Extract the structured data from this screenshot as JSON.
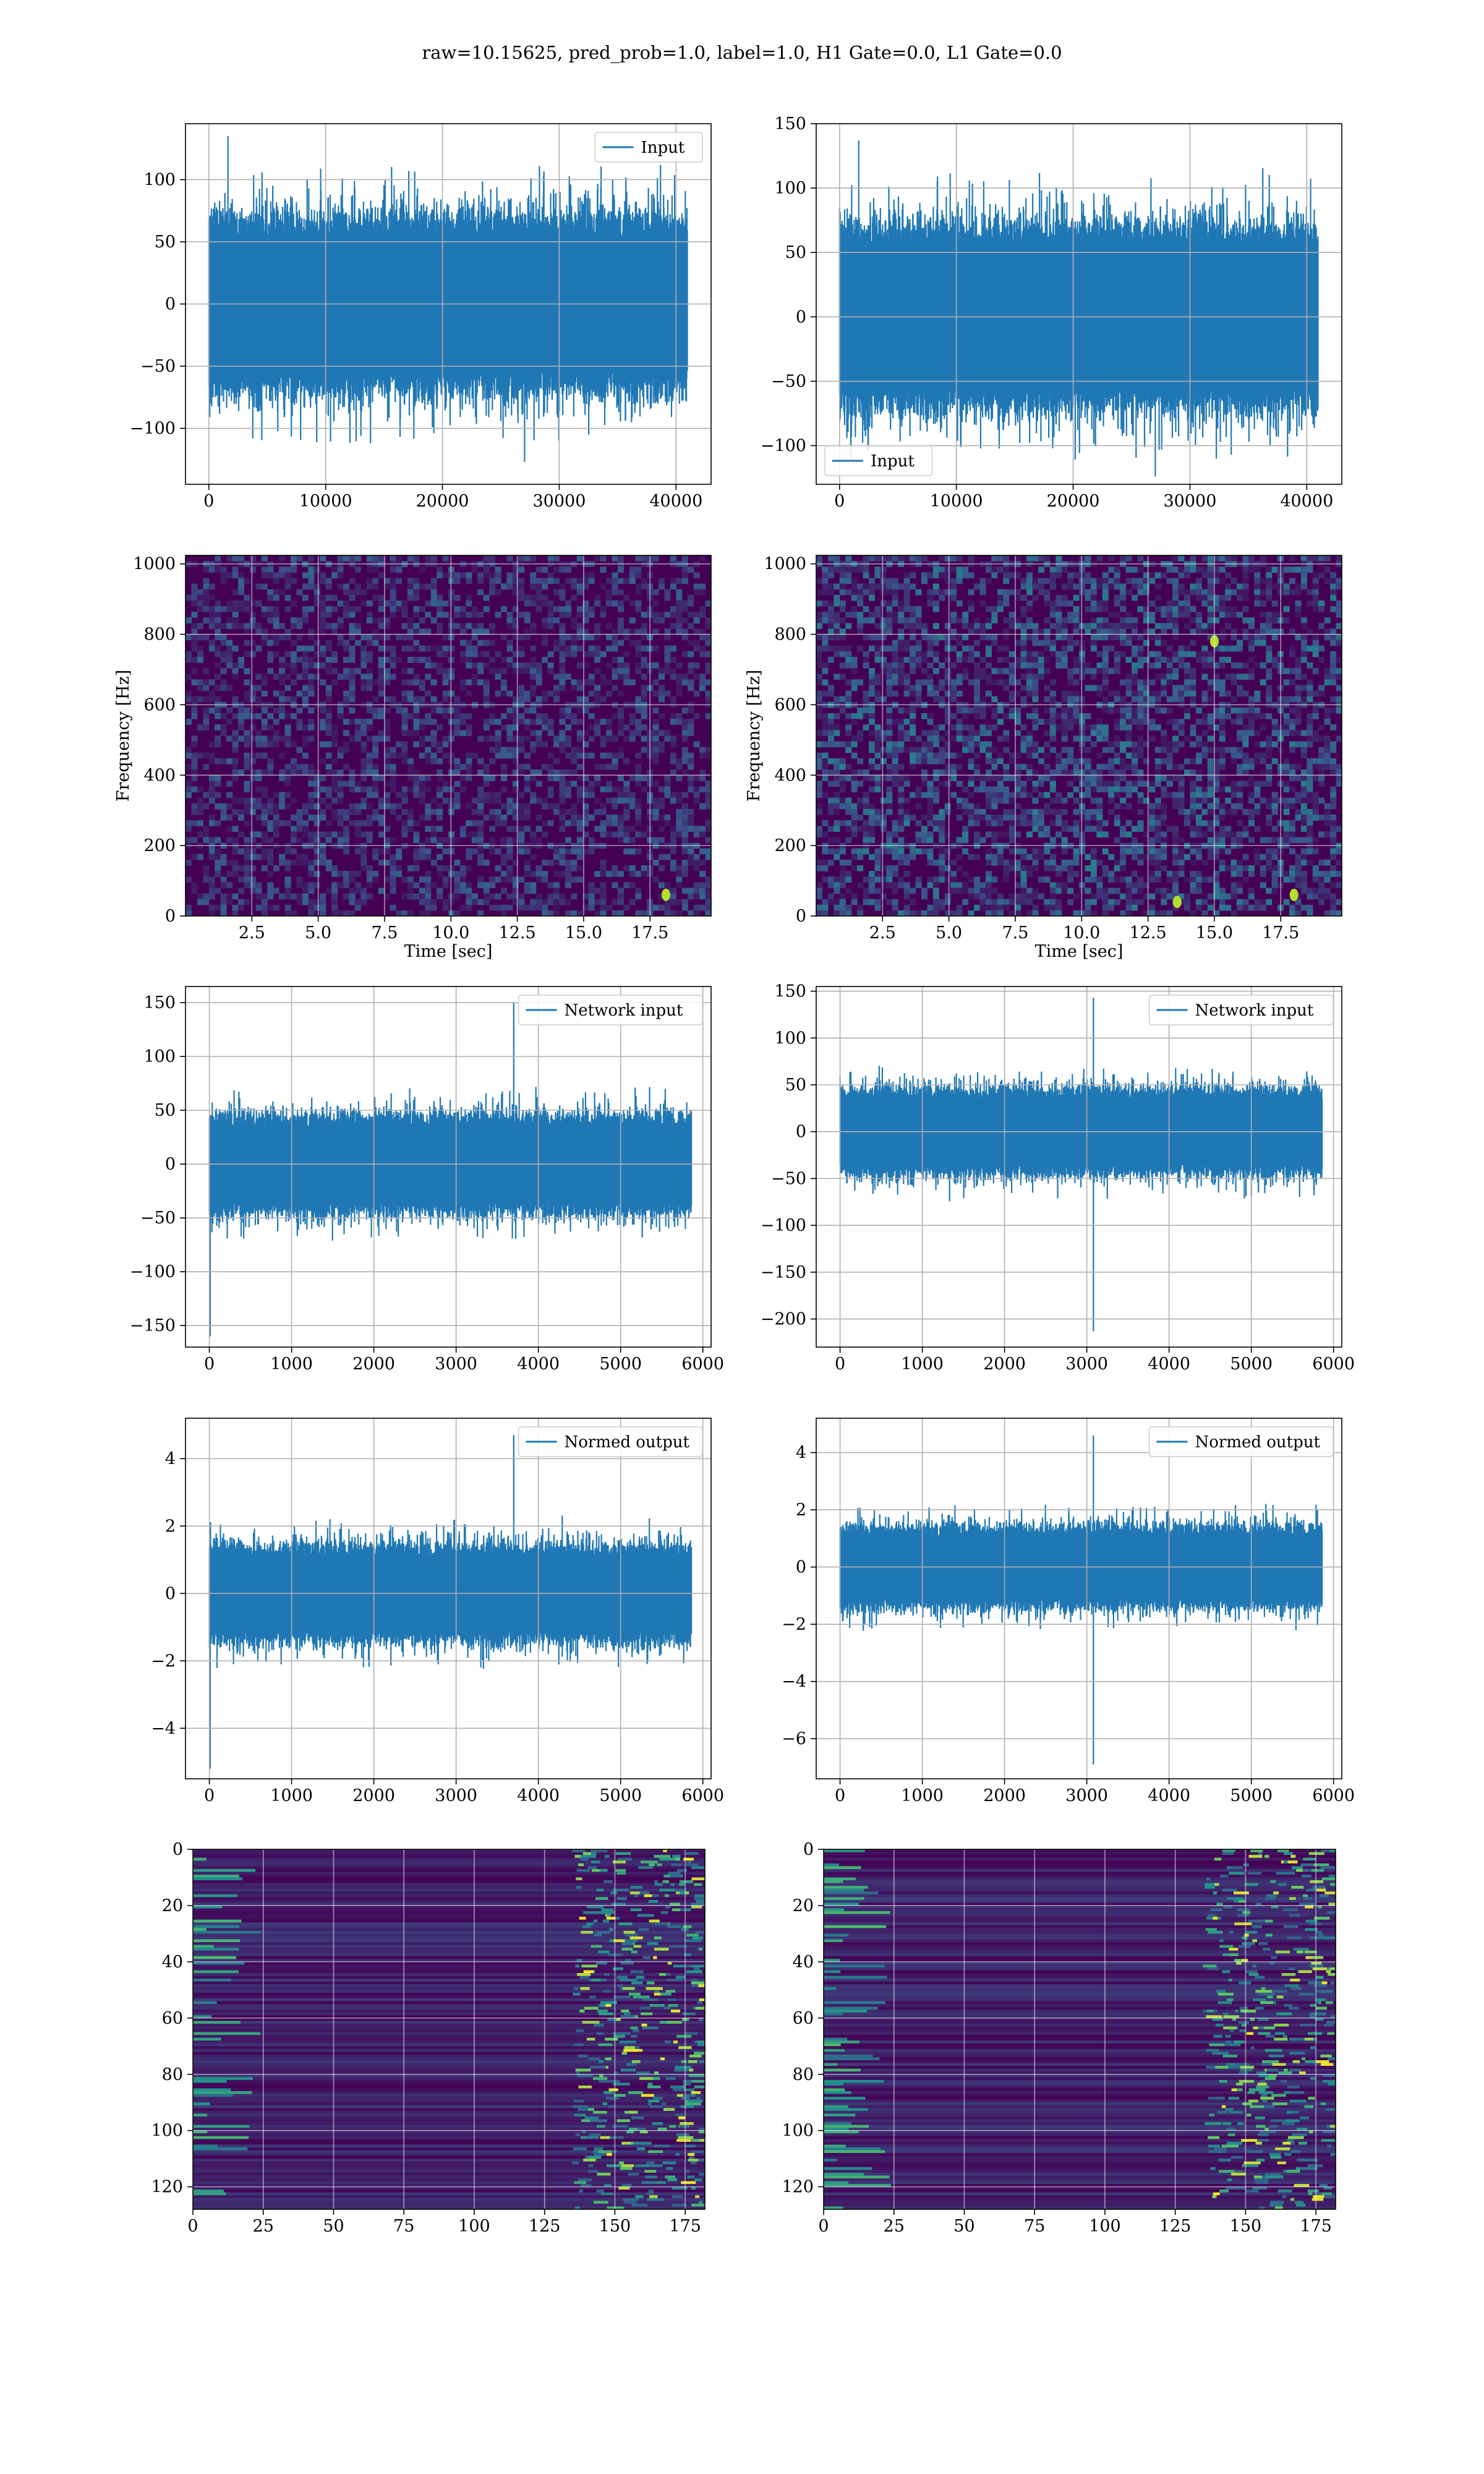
{
  "figure": {
    "title": "raw=10.15625, pred_prob=1.0, label=1.0, H1 Gate=0.0, L1 Gate=0.0"
  },
  "colors": {
    "line": "#1f77b4",
    "grid": "#b0b0b0",
    "axes": "#000000",
    "viridis_dark": "#440154"
  },
  "chart_data": [
    {
      "type": "line",
      "panel": "row1-left",
      "xlim": [
        -2000,
        43000
      ],
      "ylim": [
        -145,
        145
      ],
      "xticks": [
        0,
        10000,
        20000,
        30000,
        40000
      ],
      "yticks": [
        -100,
        -50,
        0,
        50,
        100
      ],
      "legend": "top-right",
      "grid": true,
      "series": [
        {
          "name": "Input",
          "n_samples": 40960,
          "x_range": [
            0,
            40960
          ],
          "band": [
            -70,
            70
          ],
          "max": 135,
          "min": -127
        }
      ]
    },
    {
      "type": "line",
      "panel": "row1-right",
      "xlim": [
        -2000,
        43000
      ],
      "ylim": [
        -130,
        150
      ],
      "xticks": [
        0,
        10000,
        20000,
        30000,
        40000
      ],
      "yticks": [
        -100,
        -50,
        0,
        50,
        100,
        150
      ],
      "legend": "bottom-left",
      "grid": true,
      "series": [
        {
          "name": "Input",
          "n_samples": 40960,
          "x_range": [
            0,
            40960
          ],
          "band": [
            -70,
            70
          ],
          "max": 137,
          "min": -124
        }
      ]
    },
    {
      "type": "heatmap",
      "panel": "row2-left",
      "xlim": [
        0,
        19.8
      ],
      "ylim": [
        0,
        1024
      ],
      "xticks": [
        2.5,
        5.0,
        7.5,
        10.0,
        12.5,
        15.0,
        17.5
      ],
      "xtick_labels": [
        "2.5",
        "5.0",
        "7.5",
        "10.0",
        "12.5",
        "15.0",
        "17.5"
      ],
      "yticks": [
        0,
        200,
        400,
        600,
        800,
        1000
      ],
      "xlabel": "Time [sec]",
      "ylabel": "Frequency [Hz]",
      "grid": true,
      "colormap": "viridis",
      "bright_spots": [
        [
          18.1,
          60
        ]
      ]
    },
    {
      "type": "heatmap",
      "panel": "row2-right",
      "xlim": [
        0,
        19.8
      ],
      "ylim": [
        0,
        1024
      ],
      "xticks": [
        2.5,
        5.0,
        7.5,
        10.0,
        12.5,
        15.0,
        17.5
      ],
      "xtick_labels": [
        "2.5",
        "5.0",
        "7.5",
        "10.0",
        "12.5",
        "15.0",
        "17.5"
      ],
      "yticks": [
        0,
        200,
        400,
        600,
        800,
        1000
      ],
      "xlabel": "Time [sec]",
      "ylabel": "Frequency [Hz]",
      "grid": true,
      "colormap": "viridis",
      "bright_spots": [
        [
          13.6,
          40
        ],
        [
          15.0,
          780
        ],
        [
          18.0,
          60
        ]
      ]
    },
    {
      "type": "line",
      "panel": "row3-left",
      "xlim": [
        -290,
        6100
      ],
      "ylim": [
        -170,
        165
      ],
      "xticks": [
        0,
        1000,
        2000,
        3000,
        4000,
        5000,
        6000
      ],
      "yticks": [
        -150,
        -100,
        -50,
        0,
        50,
        100,
        150
      ],
      "legend": "top-right",
      "grid": true,
      "series": [
        {
          "name": "Network input",
          "n_samples": 5860,
          "x_range": [
            0,
            5860
          ],
          "band": [
            -45,
            45
          ],
          "max": 150,
          "min": -160,
          "max_at": 3700,
          "min_at": 10
        }
      ]
    },
    {
      "type": "line",
      "panel": "row3-right",
      "xlim": [
        -290,
        6100
      ],
      "ylim": [
        -230,
        155
      ],
      "xticks": [
        0,
        1000,
        2000,
        3000,
        4000,
        5000,
        6000
      ],
      "yticks": [
        -200,
        -150,
        -100,
        -50,
        0,
        50,
        100,
        150
      ],
      "legend": "top-right",
      "grid": true,
      "series": [
        {
          "name": "Network input",
          "n_samples": 5860,
          "x_range": [
            0,
            5860
          ],
          "band": [
            -45,
            45
          ],
          "max": 143,
          "min": -213,
          "max_at": 3080,
          "min_at": 3080
        }
      ]
    },
    {
      "type": "line",
      "panel": "row4-left",
      "xlim": [
        -290,
        6100
      ],
      "ylim": [
        -5.5,
        5.2
      ],
      "xticks": [
        0,
        1000,
        2000,
        3000,
        4000,
        5000,
        6000
      ],
      "yticks": [
        -4,
        -2,
        0,
        2,
        4
      ],
      "legend": "top-right",
      "grid": true,
      "series": [
        {
          "name": "Normed output",
          "n_samples": 5860,
          "x_range": [
            0,
            5860
          ],
          "band": [
            -1.4,
            1.4
          ],
          "max": 4.7,
          "min": -5.2,
          "max_at": 3700,
          "min_at": 10
        }
      ]
    },
    {
      "type": "line",
      "panel": "row4-right",
      "xlim": [
        -290,
        6100
      ],
      "ylim": [
        -7.4,
        5.2
      ],
      "xticks": [
        0,
        1000,
        2000,
        3000,
        4000,
        5000,
        6000
      ],
      "yticks": [
        -6,
        -4,
        -2,
        0,
        2,
        4
      ],
      "legend": "top-right",
      "grid": true,
      "series": [
        {
          "name": "Normed output",
          "n_samples": 5860,
          "x_range": [
            0,
            5860
          ],
          "band": [
            -1.4,
            1.4
          ],
          "max": 4.6,
          "min": -6.9,
          "max_at": 3080,
          "min_at": 3080
        }
      ]
    },
    {
      "type": "heatmap",
      "panel": "row5-left",
      "xlim": [
        0,
        182
      ],
      "ylim": [
        128,
        0
      ],
      "xticks": [
        0,
        25,
        50,
        75,
        100,
        125,
        150,
        175
      ],
      "yticks": [
        0,
        20,
        40,
        60,
        80,
        100,
        120
      ],
      "grid": true,
      "colormap": "viridis"
    },
    {
      "type": "heatmap",
      "panel": "row5-right",
      "xlim": [
        0,
        182
      ],
      "ylim": [
        128,
        0
      ],
      "xticks": [
        0,
        25,
        50,
        75,
        100,
        125,
        150,
        175
      ],
      "yticks": [
        0,
        20,
        40,
        60,
        80,
        100,
        120
      ],
      "grid": true,
      "colormap": "viridis"
    }
  ]
}
